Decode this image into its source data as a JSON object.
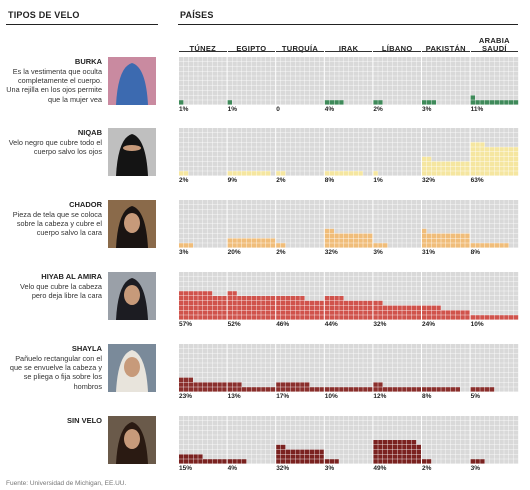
{
  "header": {
    "tipos": "TIPOS DE VELO",
    "paises": "PAÍSES"
  },
  "source": "Fuente: Universidad de Michigan, EE.UU.",
  "chart_data": {
    "type": "heatmap",
    "categories": [
      "TÚNEZ",
      "EGIPTO",
      "TURQUÍA",
      "IRAK",
      "LÍBANO",
      "PAKISTÁN",
      "ARABIA SAUDÍ"
    ],
    "series": [
      {
        "name": "BURKA",
        "color": "#3f8a5a",
        "values": [
          1,
          1,
          0,
          4,
          2,
          3,
          11
        ],
        "labels": [
          "1%",
          "1%",
          "0",
          "4%",
          "2%",
          "3%",
          "11%"
        ]
      },
      {
        "name": "NIQAB",
        "color": "#f5e6a0",
        "values": [
          2,
          9,
          2,
          8,
          1,
          32,
          63
        ],
        "labels": [
          "2%",
          "9%",
          "2%",
          "8%",
          "1%",
          "32%",
          "63%"
        ]
      },
      {
        "name": "CHADOR",
        "color": "#f0bd7a",
        "values": [
          3,
          20,
          2,
          32,
          3,
          31,
          8
        ],
        "labels": [
          "3%",
          "20%",
          "2%",
          "32%",
          "3%",
          "31%",
          "8%"
        ]
      },
      {
        "name": "HIYAB AL AMIRA",
        "color": "#d0534c",
        "values": [
          57,
          52,
          46,
          44,
          32,
          24,
          10
        ],
        "labels": [
          "57%",
          "52%",
          "46%",
          "44%",
          "32%",
          "24%",
          "10%"
        ]
      },
      {
        "name": "SHAYLA",
        "color": "#8a2f2c",
        "values": [
          23,
          13,
          17,
          10,
          12,
          8,
          5
        ],
        "labels": [
          "23%",
          "13%",
          "17%",
          "10%",
          "12%",
          "8%",
          "5%"
        ]
      },
      {
        "name": "SIN VELO",
        "color": "#7a2220",
        "values": [
          15,
          4,
          32,
          3,
          49,
          2,
          3
        ],
        "labels": [
          "15%",
          "4%",
          "32%",
          "3%",
          "49%",
          "2%",
          "3%"
        ]
      }
    ]
  },
  "veils": [
    {
      "title": "BURKA",
      "desc": "Es la vestimenta que oculta completamente el cuerpo. Una rejilla en los ojos permite que la mujer vea",
      "photo_bg": "#c98aa0",
      "photo_fg": "#3c6ab0"
    },
    {
      "title": "NIQAB",
      "desc": "Velo negro que cubre todo el cuerpo salvo los ojos",
      "photo_bg": "#bfbfbf",
      "photo_fg": "#141414"
    },
    {
      "title": "CHADOR",
      "desc": "Pieza de tela que se coloca sobre la cabeza y cubre el cuerpo salvo la cara",
      "photo_bg": "#8a6a4a",
      "photo_fg": "#1a1412"
    },
    {
      "title": "HIYAB AL AMIRA",
      "desc": "Velo que cubre la cabeza pero deja libre la cara",
      "photo_bg": "#9aa0a8",
      "photo_fg": "#1c1c22"
    },
    {
      "title": "SHAYLA",
      "desc": "Pañuelo rectangular con el que se envuelve la cabeza y se pliega o fija sobre los hombros",
      "photo_bg": "#7a8a9a",
      "photo_fg": "#e8e4dc"
    },
    {
      "title": "SIN VELO",
      "desc": "",
      "photo_bg": "#6a5a4a",
      "photo_fg": "#2a1a12"
    }
  ]
}
